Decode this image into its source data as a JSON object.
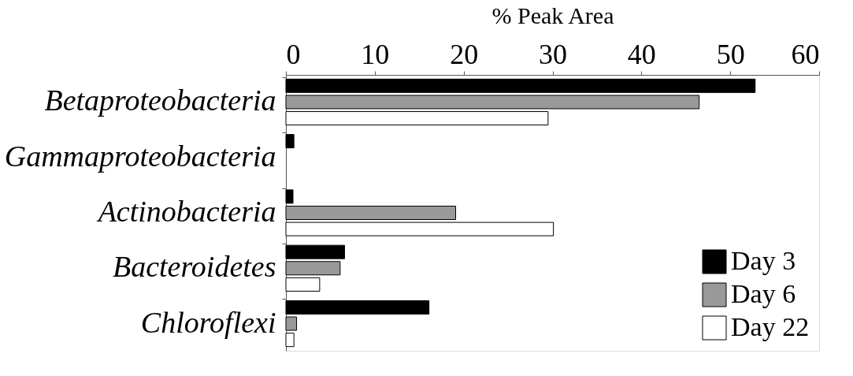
{
  "chart_data": {
    "type": "bar",
    "orientation": "horizontal",
    "xlabel": "% Peak Area",
    "categories": [
      "Betaproteobacteria",
      "Gammaproteobacteria",
      "Actinobacteria",
      "Bacteroidetes",
      "Chloroflexi"
    ],
    "series": [
      {
        "name": "Day 3",
        "color": "#000000",
        "values": [
          52.8,
          0.9,
          0.8,
          6.6,
          16.1
        ]
      },
      {
        "name": "Day 6",
        "color": "#999999",
        "values": [
          46.5,
          null,
          19.1,
          6.1,
          1.2
        ]
      },
      {
        "name": "Day 22",
        "color": "#ffffff",
        "values": [
          29.5,
          null,
          30.1,
          3.8,
          0.9
        ]
      }
    ],
    "xlim": [
      0,
      60
    ],
    "xticks": [
      0,
      10,
      20,
      30,
      40,
      50,
      60
    ],
    "grid": false,
    "legend": "bottom right"
  }
}
